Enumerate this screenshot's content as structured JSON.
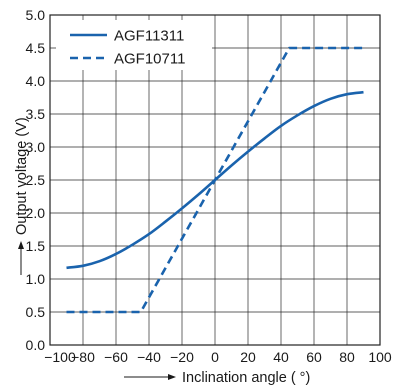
{
  "chart_data": {
    "type": "line",
    "xlabel": "Inclination angle ( °)",
    "ylabel": "Output voltage (V)",
    "xlim": [
      -100,
      100
    ],
    "ylim": [
      0.0,
      5.0
    ],
    "x_ticks": [
      -100,
      -80,
      -60,
      -40,
      -20,
      0,
      20,
      40,
      60,
      80,
      100
    ],
    "y_ticks": [
      0.0,
      0.5,
      1.0,
      1.5,
      2.0,
      2.5,
      3.0,
      3.5,
      4.0,
      4.5,
      5.0
    ],
    "x_tick_labels": [
      "−100",
      "−80",
      "−60",
      "−40",
      "−20",
      "0",
      "20",
      "40",
      "60",
      "80",
      "100"
    ],
    "y_tick_labels": [
      "0.0",
      "0.5",
      "1.0",
      "1.5",
      "2.0",
      "2.5",
      "3.0",
      "3.5",
      "4.0",
      "4.5",
      "5.0"
    ],
    "grid": true,
    "legend_position": "top-left",
    "series": [
      {
        "name": "AGF11311",
        "style": "solid",
        "color": "#1a63ad",
        "x": [
          -90,
          -80,
          -70,
          -60,
          -50,
          -40,
          -30,
          -20,
          -10,
          0,
          10,
          20,
          30,
          40,
          50,
          60,
          70,
          80,
          90
        ],
        "y": [
          1.17,
          1.2,
          1.27,
          1.38,
          1.52,
          1.68,
          1.87,
          2.07,
          2.28,
          2.5,
          2.72,
          2.93,
          3.13,
          3.32,
          3.48,
          3.62,
          3.73,
          3.8,
          3.83
        ]
      },
      {
        "name": "AGF10711",
        "style": "dashed",
        "color": "#1a63ad",
        "x": [
          -90,
          -45,
          0,
          45,
          90
        ],
        "y": [
          0.5,
          0.5,
          2.5,
          4.5,
          4.5
        ]
      }
    ]
  }
}
